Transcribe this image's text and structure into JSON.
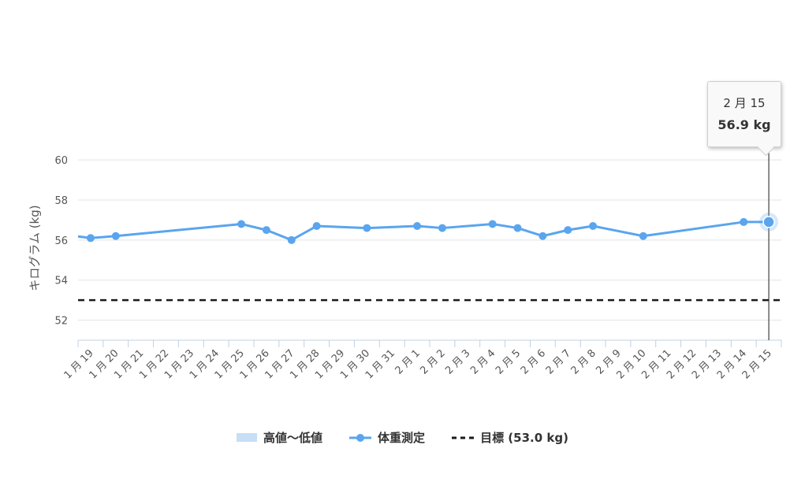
{
  "chart_data": {
    "type": "line",
    "xlabel": "",
    "ylabel": "キログラム (kg)",
    "ylim": [
      51,
      60.2
    ],
    "y_ticks": [
      52,
      54,
      56,
      58,
      60
    ],
    "grid": true,
    "legend_position": "bottom",
    "x_labels": [
      "1 月 19",
      "1 月 20",
      "1 月 21",
      "1 月 22",
      "1 月 23",
      "1 月 24",
      "1 月 25",
      "1 月 26",
      "1 月 27",
      "1 月 28",
      "1 月 29",
      "1 月 30",
      "1 月 31",
      "2 月 1",
      "2 月 2",
      "2 月 3",
      "2 月 4",
      "2 月 5",
      "2 月 6",
      "2 月 7",
      "2 月 8",
      "2 月 9",
      "2 月 10",
      "2 月 11",
      "2 月 12",
      "2 月 13",
      "2 月 14",
      "2 月 15"
    ],
    "series": [
      {
        "name": "体重測定",
        "color": "#5aa5ee",
        "points": [
          {
            "x": "1 月 19",
            "y": 56.1
          },
          {
            "x": "1 月 20",
            "y": 56.2
          },
          {
            "x": "1 月 25",
            "y": 56.8
          },
          {
            "x": "1 月 26",
            "y": 56.5
          },
          {
            "x": "1 月 27",
            "y": 56.0
          },
          {
            "x": "1 月 28",
            "y": 56.7
          },
          {
            "x": "1 月 30",
            "y": 56.6
          },
          {
            "x": "2 月 1",
            "y": 56.7
          },
          {
            "x": "2 月 2",
            "y": 56.6
          },
          {
            "x": "2 月 4",
            "y": 56.8
          },
          {
            "x": "2 月 5",
            "y": 56.6
          },
          {
            "x": "2 月 6",
            "y": 56.2
          },
          {
            "x": "2 月 7",
            "y": 56.5
          },
          {
            "x": "2 月 8",
            "y": 56.7
          },
          {
            "x": "2 月 10",
            "y": 56.2
          },
          {
            "x": "2 月 14",
            "y": 56.9
          },
          {
            "x": "2 月 15",
            "y": 56.9
          }
        ]
      }
    ],
    "goal": {
      "value": 53.0,
      "color": "#1a1a1a"
    },
    "tooltip": {
      "date": "2 月 15",
      "value": "56.9 kg"
    }
  },
  "legend": {
    "range_label": "高値〜低値",
    "range_color": "#c6def6",
    "weight_label": "体重測定",
    "goal_label": "目標 (53.0 kg)"
  }
}
